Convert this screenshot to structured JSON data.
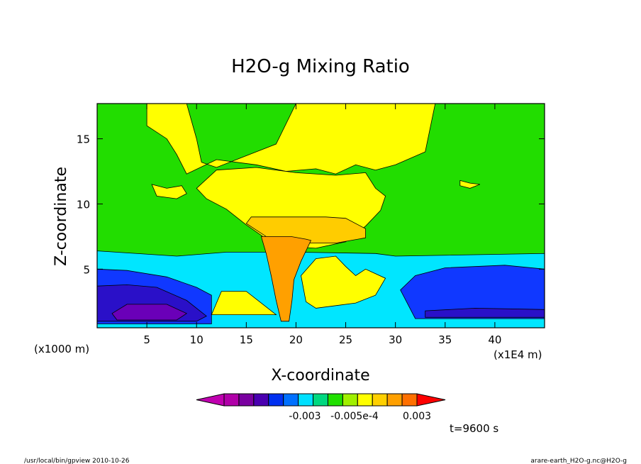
{
  "chart_data": {
    "type": "heatmap",
    "title": "H2O-g Mixing Ratio",
    "xlabel": "X-coordinate",
    "ylabel": "Z-coordinate",
    "x_unit_left": "(x1000 m)",
    "x_unit_right": "(x1E4 m)",
    "x_ticks": [
      5,
      10,
      15,
      20,
      25,
      30,
      35,
      40
    ],
    "y_ticks": [
      5,
      10,
      15
    ],
    "xlim": [
      0,
      45
    ],
    "ylim": [
      0.5,
      17.7
    ],
    "colorbar": {
      "colors": [
        "#c000b0",
        "#b000a8",
        "#7a00a0",
        "#4a00b0",
        "#0030f0",
        "#0070ff",
        "#00e0ff",
        "#00d880",
        "#20e000",
        "#a0f000",
        "#ffff00",
        "#ffd000",
        "#ffa000",
        "#ff7000",
        "#ff0000"
      ],
      "tick_labels": [
        "-0.003",
        "-0.005e-4",
        "0.003"
      ]
    },
    "regions": [
      {
        "level": "green",
        "color": "#22dd00",
        "polygon": [
          [
            0,
            0.5
          ],
          [
            45,
            0.5
          ],
          [
            45,
            17.7
          ],
          [
            0,
            17.7
          ]
        ]
      },
      {
        "level": "cyan",
        "color": "#00e6ff",
        "polygon": [
          [
            0,
            0.5
          ],
          [
            45,
            0.5
          ],
          [
            45,
            6.2
          ],
          [
            30,
            6.0
          ],
          [
            28,
            6.2
          ],
          [
            20,
            6.3
          ],
          [
            13,
            6.3
          ],
          [
            8,
            6.0
          ],
          [
            0,
            6.4
          ]
        ]
      },
      {
        "level": "blue",
        "color": "#1038ff",
        "polygon": [
          [
            0,
            0.8
          ],
          [
            11.5,
            0.8
          ],
          [
            11.5,
            3.0
          ],
          [
            10,
            3.6
          ],
          [
            7,
            4.4
          ],
          [
            3,
            4.9
          ],
          [
            0,
            5.0
          ]
        ]
      },
      {
        "level": "blue",
        "color": "#1038ff",
        "polygon": [
          [
            32,
            1.2
          ],
          [
            45,
            1.2
          ],
          [
            45,
            5.0
          ],
          [
            41,
            5.3
          ],
          [
            35,
            5.1
          ],
          [
            32,
            4.5
          ],
          [
            30.5,
            3.4
          ]
        ]
      },
      {
        "level": "navy",
        "color": "#2a10c8",
        "polygon": [
          [
            0,
            1.0
          ],
          [
            10,
            1.0
          ],
          [
            11,
            1.4
          ],
          [
            9,
            2.6
          ],
          [
            6,
            3.6
          ],
          [
            3,
            3.8
          ],
          [
            0,
            3.7
          ]
        ]
      },
      {
        "level": "navy",
        "color": "#2a10c8",
        "polygon": [
          [
            33,
            1.3
          ],
          [
            45,
            1.3
          ],
          [
            45,
            1.9
          ],
          [
            38,
            2.0
          ],
          [
            33,
            1.8
          ]
        ]
      },
      {
        "level": "purple",
        "color": "#6a00b8",
        "polygon": [
          [
            2,
            1.1
          ],
          [
            8,
            1.1
          ],
          [
            9,
            1.6
          ],
          [
            7,
            2.3
          ],
          [
            3,
            2.3
          ],
          [
            1.5,
            1.6
          ]
        ]
      },
      {
        "level": "yellow",
        "color": "#ffff00",
        "polygon": [
          [
            5,
            17.7
          ],
          [
            9,
            17.7
          ],
          [
            10,
            15
          ],
          [
            10.5,
            13.2
          ],
          [
            12,
            12.8
          ],
          [
            15,
            13.7
          ],
          [
            18,
            14.6
          ],
          [
            20,
            17.7
          ],
          [
            34,
            17.7
          ],
          [
            33,
            14
          ],
          [
            30,
            13.0
          ],
          [
            28,
            12.6
          ],
          [
            26,
            13.0
          ],
          [
            24,
            12.3
          ],
          [
            22,
            12.7
          ],
          [
            19,
            12.5
          ],
          [
            16,
            13.0
          ],
          [
            12,
            13.4
          ],
          [
            9,
            12.3
          ],
          [
            8,
            13.8
          ],
          [
            7,
            15
          ],
          [
            5,
            16
          ]
        ]
      },
      {
        "level": "yellow",
        "color": "#ffff00",
        "polygon": [
          [
            10,
            11.2
          ],
          [
            12,
            12.6
          ],
          [
            16,
            12.8
          ],
          [
            20,
            12.4
          ],
          [
            24,
            12.2
          ],
          [
            27,
            12.4
          ],
          [
            28,
            11.2
          ],
          [
            29,
            10.6
          ],
          [
            28.5,
            9.5
          ],
          [
            27,
            8.3
          ],
          [
            25,
            7.1
          ],
          [
            22,
            6.6
          ],
          [
            18,
            6.8
          ],
          [
            15,
            8.4
          ],
          [
            13,
            9.6
          ],
          [
            11,
            10.4
          ]
        ]
      },
      {
        "level": "yellow",
        "color": "#ffff00",
        "polygon": [
          [
            5.5,
            11.5
          ],
          [
            7,
            11.2
          ],
          [
            8.5,
            11.4
          ],
          [
            9,
            10.8
          ],
          [
            8,
            10.4
          ],
          [
            6,
            10.6
          ]
        ]
      },
      {
        "level": "yellow",
        "color": "#ffff00",
        "polygon": [
          [
            36.5,
            11.8
          ],
          [
            37.5,
            11.6
          ],
          [
            38.5,
            11.5
          ],
          [
            37.5,
            11.2
          ],
          [
            36.5,
            11.4
          ]
        ]
      },
      {
        "level": "gold",
        "color": "#ffcc00",
        "polygon": [
          [
            15,
            8.5
          ],
          [
            17,
            7.5
          ],
          [
            20,
            7.0
          ],
          [
            24,
            7.0
          ],
          [
            27,
            7.4
          ],
          [
            27,
            8.1
          ],
          [
            25,
            8.9
          ],
          [
            23,
            9.0
          ],
          [
            20,
            9.0
          ],
          [
            17,
            9.0
          ],
          [
            15.5,
            9.0
          ]
        ]
      },
      {
        "level": "orange",
        "color": "#ffa000",
        "polygon": [
          [
            16.5,
            7.5
          ],
          [
            19.5,
            7.5
          ],
          [
            21,
            7.3
          ],
          [
            21.5,
            7.2
          ],
          [
            20.5,
            5.6
          ],
          [
            19.8,
            4.2
          ],
          [
            19.6,
            2.6
          ],
          [
            19.3,
            1.0
          ],
          [
            18.5,
            1.0
          ],
          [
            18,
            2.6
          ],
          [
            17.5,
            4.5
          ],
          [
            17,
            6.2
          ]
        ]
      },
      {
        "level": "yellow",
        "color": "#ffff00",
        "polygon": [
          [
            11.5,
            1.5
          ],
          [
            12.5,
            3.3
          ],
          [
            15,
            3.3
          ],
          [
            16.5,
            2.4
          ],
          [
            18,
            1.5
          ]
        ]
      },
      {
        "level": "yellow",
        "color": "#ffff00",
        "polygon": [
          [
            20.5,
            4.5
          ],
          [
            22,
            5.8
          ],
          [
            24,
            6.0
          ],
          [
            25,
            5.2
          ],
          [
            26,
            4.5
          ],
          [
            27,
            5.0
          ],
          [
            29,
            4.3
          ],
          [
            28,
            3.0
          ],
          [
            26,
            2.4
          ],
          [
            24,
            2.2
          ],
          [
            22,
            2.0
          ],
          [
            21,
            2.5
          ]
        ]
      }
    ]
  },
  "footer": {
    "left": "/usr/local/bin/gpview  2010-10-26",
    "right": "arare-earth_H2O-g.nc@H2O-g",
    "time": "t=9600 s"
  }
}
